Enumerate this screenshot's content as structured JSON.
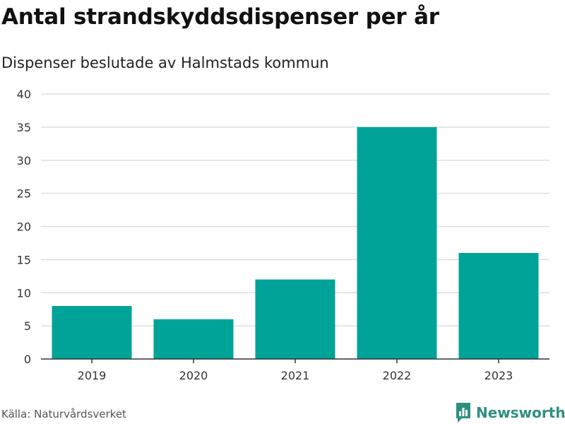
{
  "colors": {
    "bar": "#00a398",
    "grid": "#dedede",
    "axis": "#333333",
    "brand": "#2e8f7f"
  },
  "header": {
    "title": "Antal strandskyddsdispenser per år",
    "subtitle": "Dispenser beslutade av Halmstads kommun"
  },
  "footer": {
    "source": "Källa: Naturvårdsverket",
    "brand": "Newsworthy",
    "brand_icon": "bar-chart-icon"
  },
  "chart_data": {
    "type": "bar",
    "categories": [
      "2019",
      "2020",
      "2021",
      "2022",
      "2023"
    ],
    "values": [
      8,
      6,
      12,
      35,
      16
    ],
    "ylim": [
      0,
      40
    ],
    "yticks": [
      "0",
      "5",
      "10",
      "15",
      "20",
      "25",
      "30",
      "35",
      "40"
    ],
    "grid": true
  }
}
